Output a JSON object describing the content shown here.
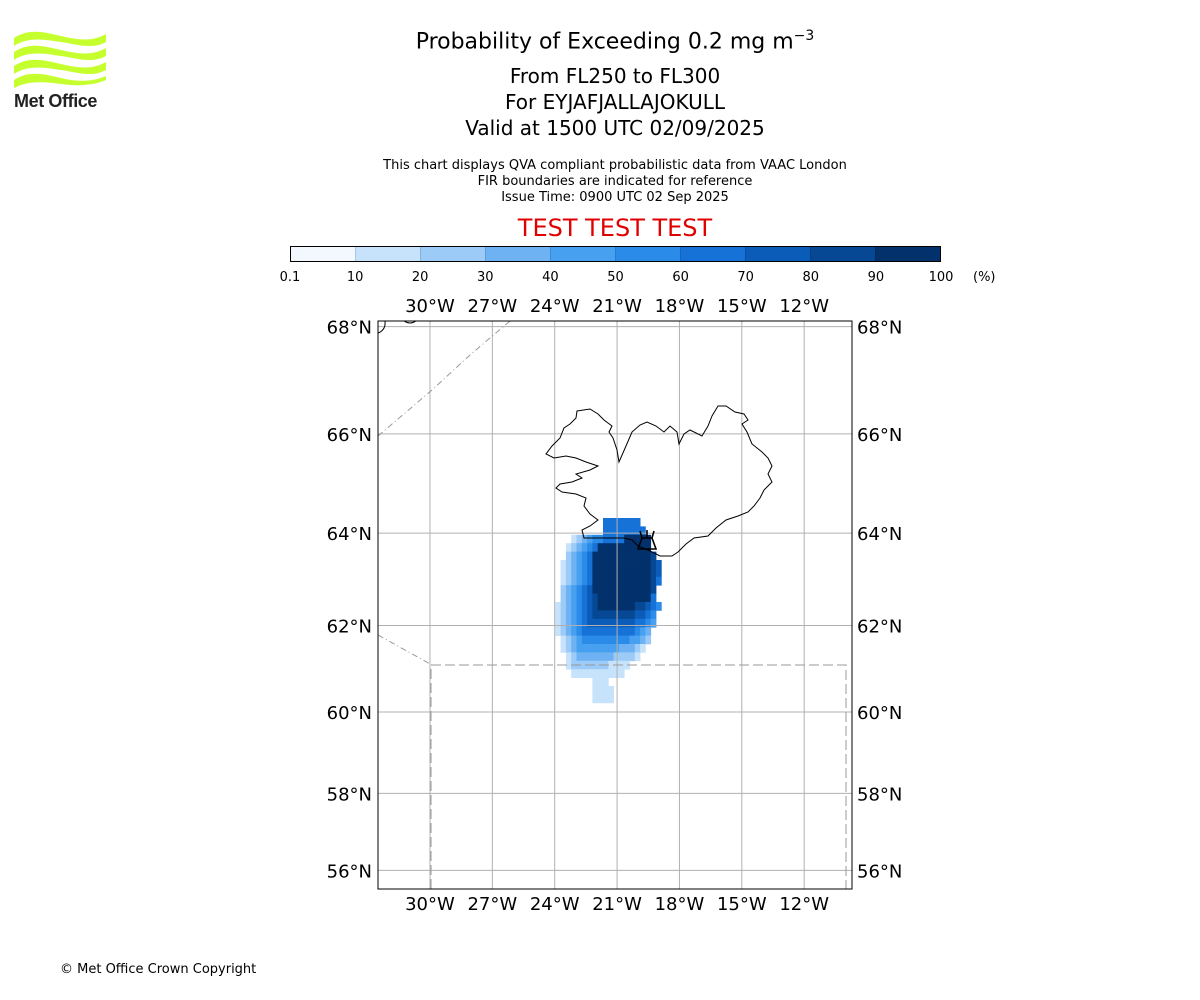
{
  "header": {
    "title": "Probability of Exceeding 0.2 mg m",
    "title_superscript": "−3",
    "levels": "From FL250 to FL300",
    "volcano": "For EYJAFJALLAJOKULL",
    "valid": "Valid at 1500 UTC 02/09/2025"
  },
  "info": {
    "line1": "This chart displays QVA compliant probabilistic data from VAAC London",
    "line2": "FIR boundaries are indicated for reference",
    "line3": "Issue Time: 0900 UTC 02 Sep 2025"
  },
  "banner": "TEST TEST TEST",
  "logo": {
    "text": "Met Office",
    "color": "#c6ff2e"
  },
  "colorbar": {
    "ticks": [
      "0.1",
      "10",
      "20",
      "30",
      "40",
      "50",
      "60",
      "70",
      "80",
      "90",
      "100"
    ],
    "unit": "(%)",
    "colors": [
      "#f2f8fe",
      "#c7e2fb",
      "#9ccbf7",
      "#6fb2f3",
      "#47a0f0",
      "#2b8be8",
      "#1672d6",
      "#0b5cb8",
      "#064894",
      "#03316c"
    ]
  },
  "map": {
    "lon_labels": [
      "30°W",
      "27°W",
      "24°W",
      "21°W",
      "18°W",
      "15°W",
      "12°W"
    ],
    "lat_labels": [
      "68°N",
      "66°N",
      "64°N",
      "62°N",
      "60°N",
      "58°N",
      "56°N"
    ],
    "lon_values": [
      -30,
      -27,
      -24,
      -21,
      -18,
      -15,
      -12
    ],
    "lat_values": [
      68,
      66,
      64,
      62,
      60,
      58,
      56
    ],
    "extent": {
      "lon_min": -32.5,
      "lon_max": -9.7,
      "lat_min": 55.5,
      "lat_max": 68.1
    },
    "grid": true,
    "volcano_symbol": "volcano-icon"
  },
  "footer": {
    "copyright": "© Met Office Crown Copyright"
  }
}
